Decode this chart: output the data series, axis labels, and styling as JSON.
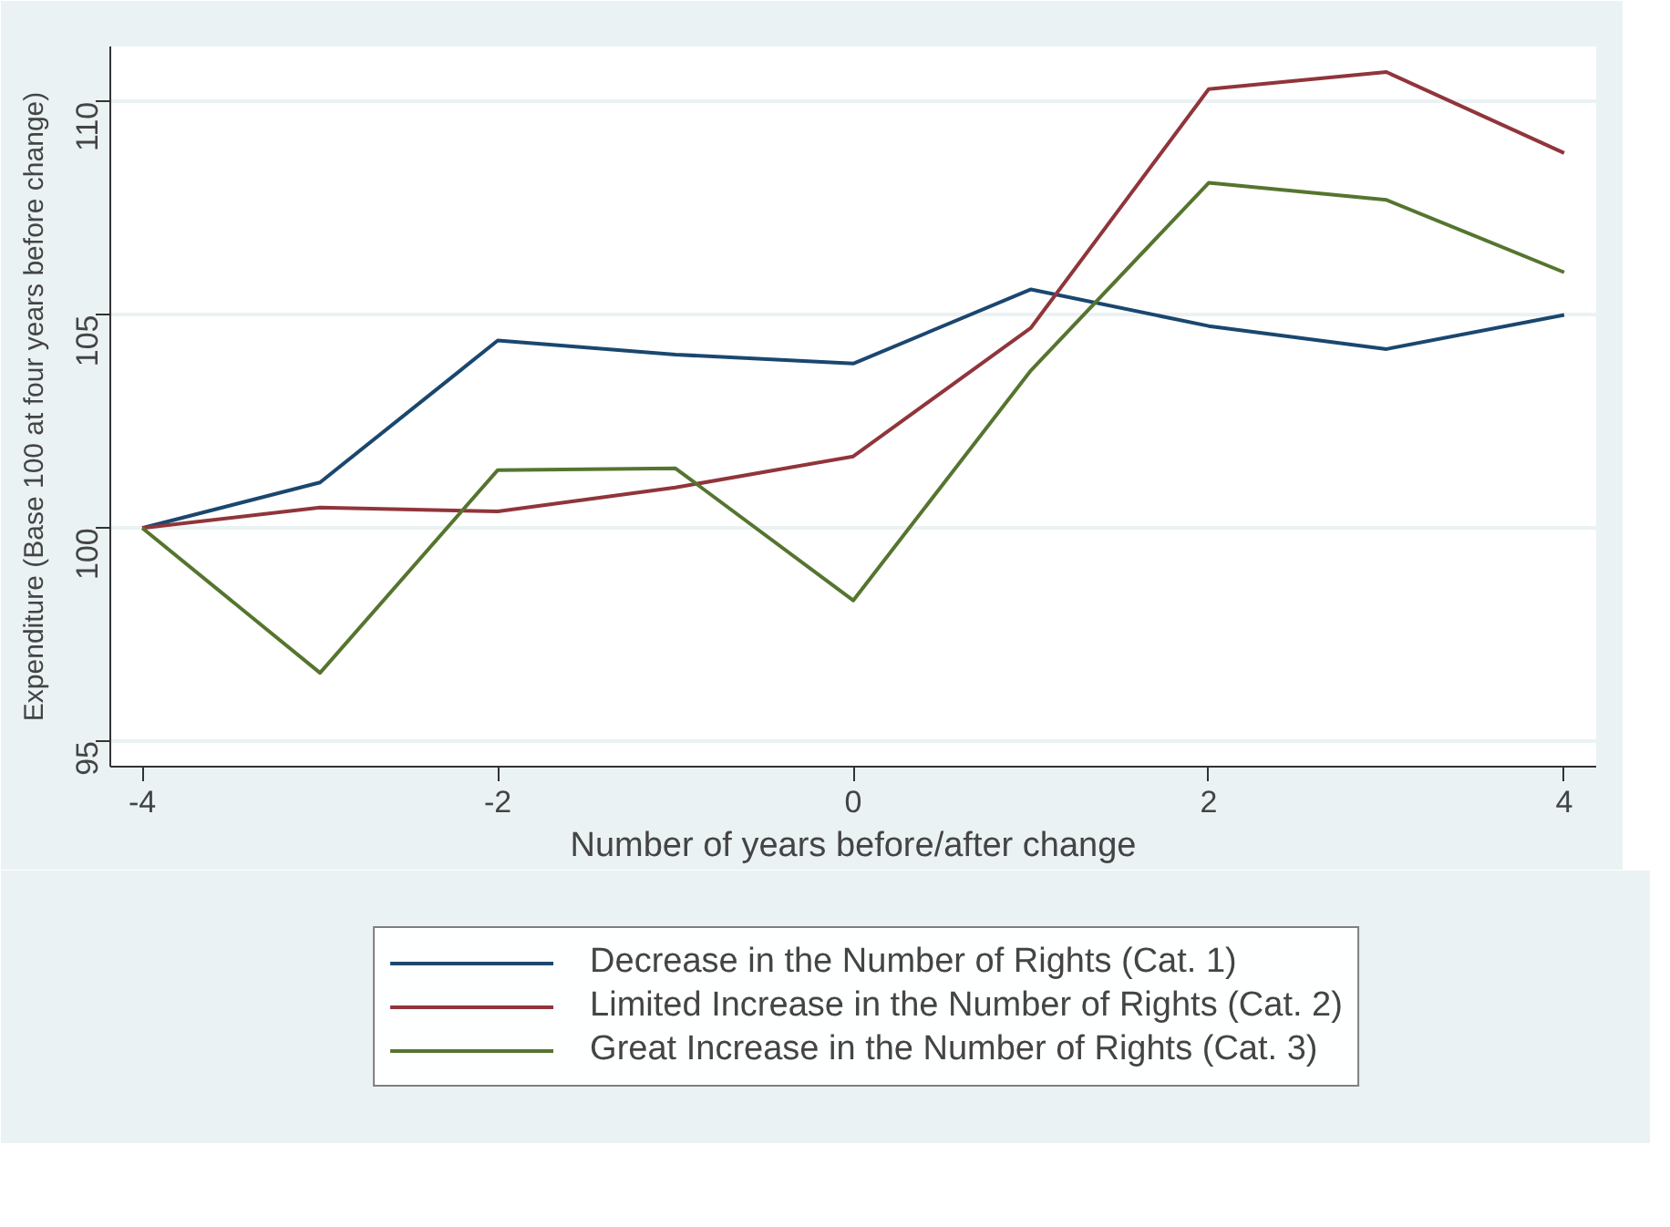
{
  "chart_data": {
    "type": "line",
    "xlabel": "Number of years before/after change",
    "ylabel": "Expenditure (Base 100 at four years before change)",
    "x": [
      -4,
      -3,
      -2,
      -1,
      0,
      1,
      2,
      3,
      4
    ],
    "series": [
      {
        "name": "Decrease in the Number of Rights (Cat. 1)",
        "color": "#1a476f",
        "values": [
          100,
          101.07,
          104.4,
          104.07,
          103.86,
          105.6,
          104.74,
          104.2,
          105.0
        ]
      },
      {
        "name": "Limited Increase in the Number of Rights (Cat. 2)",
        "color": "#90353b",
        "values": [
          100,
          100.48,
          100.39,
          100.95,
          101.68,
          104.7,
          110.3,
          110.7,
          108.8
        ]
      },
      {
        "name": "Great Increase in the Number of Rights (Cat. 3)",
        "color": "#55752f",
        "values": [
          100,
          96.6,
          101.36,
          101.4,
          98.3,
          103.7,
          108.1,
          107.7,
          106.0
        ]
      }
    ],
    "xlim": [
      -4.18,
      4.18
    ],
    "ylim": [
      94.4,
      111.3
    ],
    "xticks": [
      -4,
      -2,
      0,
      2,
      4
    ],
    "yticks": [
      95,
      100,
      105,
      110
    ],
    "grid": "y",
    "legend": "bottom",
    "marker": "none",
    "line_style": "solid"
  }
}
